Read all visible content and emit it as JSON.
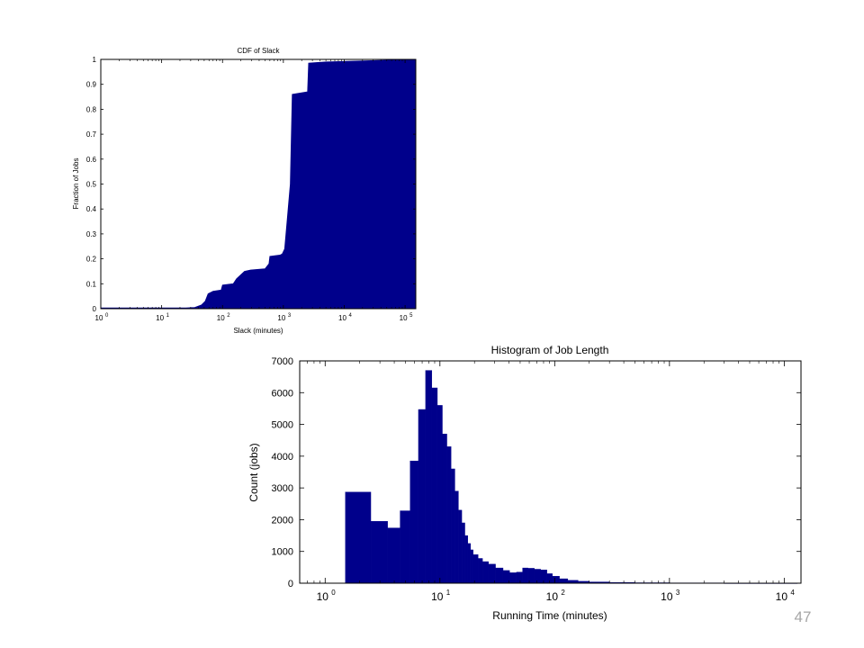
{
  "slide": {
    "number": "47"
  },
  "colors": {
    "bar": "#00008b",
    "axis": "#000000",
    "slide_number": "#a6a6a6"
  },
  "chart_data": [
    {
      "type": "area",
      "title": "CDF of Slack",
      "xlabel": "Slack (minutes)",
      "ylabel": "Fraction of Jobs",
      "xscale": "log",
      "xlim": [
        1,
        150000
      ],
      "ylim": [
        0,
        1
      ],
      "xticks": [
        {
          "value": 1,
          "base": "10",
          "exp": "0"
        },
        {
          "value": 10,
          "base": "10",
          "exp": "1"
        },
        {
          "value": 100,
          "base": "10",
          "exp": "2"
        },
        {
          "value": 1000,
          "base": "10",
          "exp": "3"
        },
        {
          "value": 10000,
          "base": "10",
          "exp": "4"
        },
        {
          "value": 100000,
          "base": "10",
          "exp": "5"
        }
      ],
      "yticks": [
        {
          "value": 0,
          "label": "0"
        },
        {
          "value": 0.1,
          "label": "0.1"
        },
        {
          "value": 0.2,
          "label": "0.2"
        },
        {
          "value": 0.3,
          "label": "0.3"
        },
        {
          "value": 0.4,
          "label": "0.4"
        },
        {
          "value": 0.5,
          "label": "0.5"
        },
        {
          "value": 0.6,
          "label": "0.6"
        },
        {
          "value": 0.7,
          "label": "0.7"
        },
        {
          "value": 0.8,
          "label": "0.8"
        },
        {
          "value": 0.9,
          "label": "0.9"
        },
        {
          "value": 1,
          "label": "1"
        }
      ],
      "x": [
        1,
        25,
        35,
        45,
        52,
        58,
        70,
        95,
        100,
        150,
        170,
        230,
        290,
        500,
        580,
        600,
        880,
        960,
        1050,
        1150,
        1300,
        1400,
        2500,
        2600,
        5000,
        150000
      ],
      "y": [
        0.003,
        0.003,
        0.005,
        0.015,
        0.03,
        0.06,
        0.07,
        0.075,
        0.095,
        0.1,
        0.12,
        0.15,
        0.155,
        0.16,
        0.18,
        0.21,
        0.215,
        0.22,
        0.24,
        0.35,
        0.5,
        0.86,
        0.87,
        0.985,
        0.99,
        1.0
      ],
      "grid": false,
      "legend": "none"
    },
    {
      "type": "bar",
      "title": "Histogram of Job Length",
      "xlabel": "Running Time (minutes)",
      "ylabel": "Count (jobs)",
      "xscale": "log",
      "xlim": [
        0.6,
        14000
      ],
      "ylim": [
        0,
        7000
      ],
      "xticks": [
        {
          "value": 1,
          "base": "10",
          "exp": "0"
        },
        {
          "value": 10,
          "base": "10",
          "exp": "1"
        },
        {
          "value": 100,
          "base": "10",
          "exp": "2"
        },
        {
          "value": 1000,
          "base": "10",
          "exp": "3"
        },
        {
          "value": 10000,
          "base": "10",
          "exp": "4"
        }
      ],
      "yticks": [
        {
          "value": 0,
          "label": "0"
        },
        {
          "value": 1000,
          "label": "1000"
        },
        {
          "value": 2000,
          "label": "2000"
        },
        {
          "value": 3000,
          "label": "3000"
        },
        {
          "value": 4000,
          "label": "4000"
        },
        {
          "value": 5000,
          "label": "5000"
        },
        {
          "value": 6000,
          "label": "6000"
        },
        {
          "value": 7000,
          "label": "7000"
        }
      ],
      "bins": [
        {
          "x0": 1.5,
          "x1": 2.5,
          "value": 2870
        },
        {
          "x0": 2.5,
          "x1": 3.5,
          "value": 1950
        },
        {
          "x0": 3.5,
          "x1": 4.5,
          "value": 1740
        },
        {
          "x0": 4.5,
          "x1": 5.5,
          "value": 2280
        },
        {
          "x0": 5.5,
          "x1": 6.5,
          "value": 3850
        },
        {
          "x0": 6.5,
          "x1": 7.5,
          "value": 5470
        },
        {
          "x0": 7.5,
          "x1": 8.5,
          "value": 6700
        },
        {
          "x0": 8.5,
          "x1": 9.5,
          "value": 6150
        },
        {
          "x0": 9.5,
          "x1": 10.5,
          "value": 5600
        },
        {
          "x0": 10.5,
          "x1": 11.5,
          "value": 4700
        },
        {
          "x0": 11.5,
          "x1": 12.5,
          "value": 4300
        },
        {
          "x0": 12.5,
          "x1": 13.5,
          "value": 3600
        },
        {
          "x0": 13.5,
          "x1": 14.5,
          "value": 2900
        },
        {
          "x0": 14.5,
          "x1": 15.5,
          "value": 2300
        },
        {
          "x0": 15.5,
          "x1": 16.5,
          "value": 1900
        },
        {
          "x0": 16.5,
          "x1": 17.5,
          "value": 1500
        },
        {
          "x0": 17.5,
          "x1": 18.5,
          "value": 1250
        },
        {
          "x0": 18.5,
          "x1": 19.5,
          "value": 1050
        },
        {
          "x0": 19.5,
          "x1": 21.5,
          "value": 900
        },
        {
          "x0": 21.5,
          "x1": 23.5,
          "value": 780
        },
        {
          "x0": 23.5,
          "x1": 26.5,
          "value": 680
        },
        {
          "x0": 26.5,
          "x1": 30.5,
          "value": 600
        },
        {
          "x0": 30.5,
          "x1": 35.5,
          "value": 480
        },
        {
          "x0": 35.5,
          "x1": 40.5,
          "value": 400
        },
        {
          "x0": 40.5,
          "x1": 46.5,
          "value": 330
        },
        {
          "x0": 46.5,
          "x1": 52.5,
          "value": 350
        },
        {
          "x0": 52.5,
          "x1": 58.5,
          "value": 480
        },
        {
          "x0": 58.5,
          "x1": 66.5,
          "value": 470
        },
        {
          "x0": 66.5,
          "x1": 75.5,
          "value": 440
        },
        {
          "x0": 75.5,
          "x1": 85.5,
          "value": 420
        },
        {
          "x0": 85.5,
          "x1": 95.5,
          "value": 300
        },
        {
          "x0": 95.5,
          "x1": 110,
          "value": 220
        },
        {
          "x0": 110,
          "x1": 130,
          "value": 140
        },
        {
          "x0": 130,
          "x1": 160,
          "value": 90
        },
        {
          "x0": 160,
          "x1": 200,
          "value": 60
        },
        {
          "x0": 200,
          "x1": 300,
          "value": 40
        },
        {
          "x0": 300,
          "x1": 500,
          "value": 25
        },
        {
          "x0": 500,
          "x1": 1000,
          "value": 15
        },
        {
          "x0": 1000,
          "x1": 3000,
          "value": 10
        },
        {
          "x0": 3000,
          "x1": 13000,
          "value": 5
        }
      ],
      "grid": false,
      "legend": "none"
    }
  ]
}
